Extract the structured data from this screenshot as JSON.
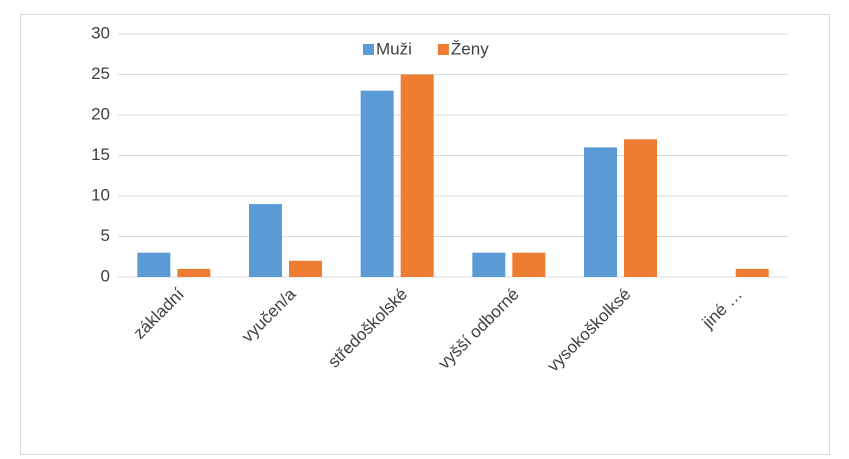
{
  "chart_data": {
    "type": "bar",
    "categories": [
      "základní",
      "vyučen/a",
      "středoškolské",
      "vyšší odborné",
      "vysokoškolksé",
      "jiné …"
    ],
    "series": [
      {
        "name": "Muži",
        "color": "#5b9bd5",
        "values": [
          3,
          9,
          23,
          3,
          16,
          0
        ]
      },
      {
        "name": "Ženy",
        "color": "#ed7d31",
        "values": [
          1,
          2,
          25,
          3,
          17,
          1
        ]
      }
    ],
    "ylim": [
      0,
      30
    ],
    "yticks": [
      0,
      5,
      10,
      15,
      20,
      25,
      30
    ],
    "grid": true,
    "legend": "top"
  }
}
